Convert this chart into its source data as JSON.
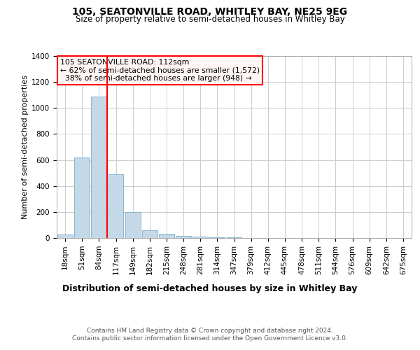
{
  "title1": "105, SEATONVILLE ROAD, WHITLEY BAY, NE25 9EG",
  "title2": "Size of property relative to semi-detached houses in Whitley Bay",
  "xlabel": "Distribution of semi-detached houses by size in Whitley Bay",
  "ylabel": "Number of semi-detached properties",
  "footer": "Contains HM Land Registry data © Crown copyright and database right 2024.\nContains public sector information licensed under the Open Government Licence v3.0.",
  "annotation_line1": "105 SEATONVILLE ROAD: 112sqm",
  "annotation_line2": "← 62% of semi-detached houses are smaller (1,572)",
  "annotation_line3": "  38% of semi-detached houses are larger (948) →",
  "bar_color": "#c5d8e8",
  "bar_edge_color": "#7aafc8",
  "vline_color": "red",
  "annotation_box_facecolor": "#fff5f5",
  "annotation_box_edgecolor": "red",
  "categories": [
    "18sqm",
    "51sqm",
    "84sqm",
    "117sqm",
    "149sqm",
    "182sqm",
    "215sqm",
    "248sqm",
    "281sqm",
    "314sqm",
    "347sqm",
    "379sqm",
    "412sqm",
    "445sqm",
    "478sqm",
    "511sqm",
    "544sqm",
    "576sqm",
    "609sqm",
    "642sqm",
    "675sqm"
  ],
  "bar_values": [
    25,
    620,
    1090,
    490,
    197,
    60,
    30,
    18,
    12,
    8,
    5,
    0,
    0,
    0,
    0,
    0,
    0,
    0,
    0,
    0,
    0
  ],
  "ylim": [
    0,
    1400
  ],
  "yticks": [
    0,
    200,
    400,
    600,
    800,
    1000,
    1200,
    1400
  ],
  "vline_bar_index": 2.5,
  "background_color": "#ffffff",
  "grid_color": "#cccccc",
  "title1_fontsize": 10,
  "title2_fontsize": 8.5,
  "xlabel_fontsize": 9,
  "ylabel_fontsize": 8,
  "tick_fontsize": 7.5,
  "footer_fontsize": 6.5,
  "annotation_fontsize": 7.8
}
